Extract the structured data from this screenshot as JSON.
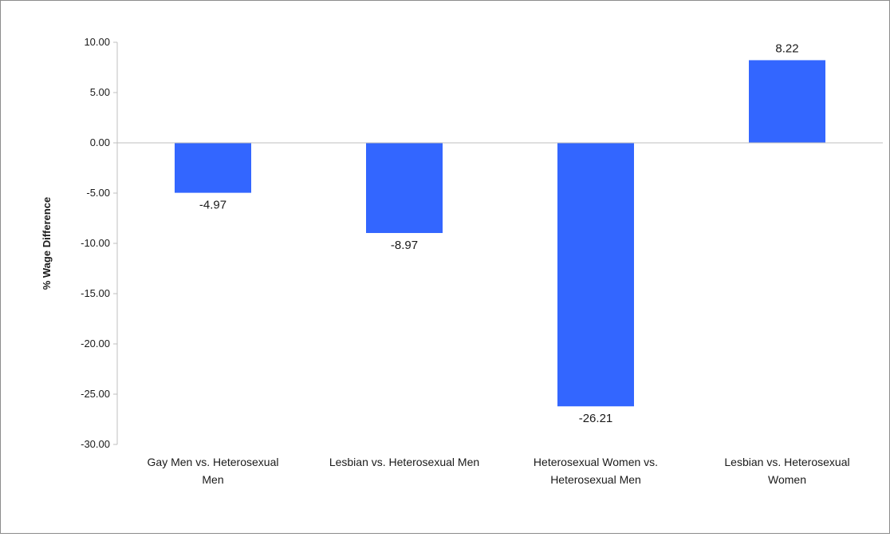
{
  "chart_data": {
    "type": "bar",
    "title": "",
    "xlabel": "",
    "ylabel": "% Wage Difference",
    "ylim": [
      -30,
      10
    ],
    "yticks": [
      "10.00",
      "5.00",
      "0.00",
      "-5.00",
      "-10.00",
      "-15.00",
      "-20.00",
      "-25.00",
      "-30.00"
    ],
    "categories": [
      [
        "Gay Men vs. Heterosexual",
        "Men"
      ],
      [
        "Lesbian vs. Heterosexual Men"
      ],
      [
        "Heterosexual Women vs.",
        "Heterosexual Men"
      ],
      [
        "Lesbian vs. Heterosexual",
        "Women"
      ]
    ],
    "values": [
      -4.97,
      -8.97,
      -26.21,
      8.22
    ],
    "value_labels": [
      "-4.97",
      "-8.97",
      "-26.21",
      "8.22"
    ],
    "bar_color": "#3366ff",
    "grid": false,
    "legend": "none"
  }
}
